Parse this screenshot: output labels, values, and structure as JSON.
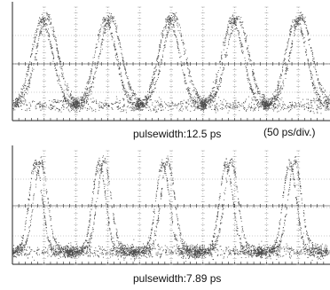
{
  "figure": {
    "top_caption": "pulsewidth:12.5 ps",
    "time_scale": "(50 ps/div.)",
    "bottom_caption": "pulsewidth:7.89 ps"
  },
  "colors": {
    "trace": "#4a4a4a",
    "grid": "#9a9a9a",
    "frame": "#222222",
    "background": "#ffffff"
  },
  "chart_data": [
    {
      "type": "scatter",
      "description_label": "pulsewidth:12.5 ps",
      "x_axis": {
        "divisions": 10,
        "per_division": "50 ps",
        "range_ps": [
          0,
          500
        ]
      },
      "y_axis": {
        "divisions": 4,
        "units": "arbitrary"
      },
      "grid": true,
      "pulse_period_ps": 100,
      "pulse_peaks_ps": [
        50,
        150,
        250,
        350,
        450
      ],
      "pulse_width_ps": 12.5,
      "high_level_div": 3.6,
      "low_level_div": 0.55
    },
    {
      "type": "scatter",
      "description_label": "pulsewidth:7.89 ps",
      "x_axis": {
        "divisions": 10,
        "per_division": "50 ps",
        "range_ps": [
          0,
          500
        ]
      },
      "y_axis": {
        "divisions": 4,
        "units": "arbitrary"
      },
      "grid": true,
      "pulse_period_ps": 100,
      "pulse_peaks_ps": [
        40,
        140,
        240,
        340,
        440
      ],
      "pulse_width_ps": 7.89,
      "high_level_div": 3.6,
      "low_level_div": 0.45
    }
  ]
}
